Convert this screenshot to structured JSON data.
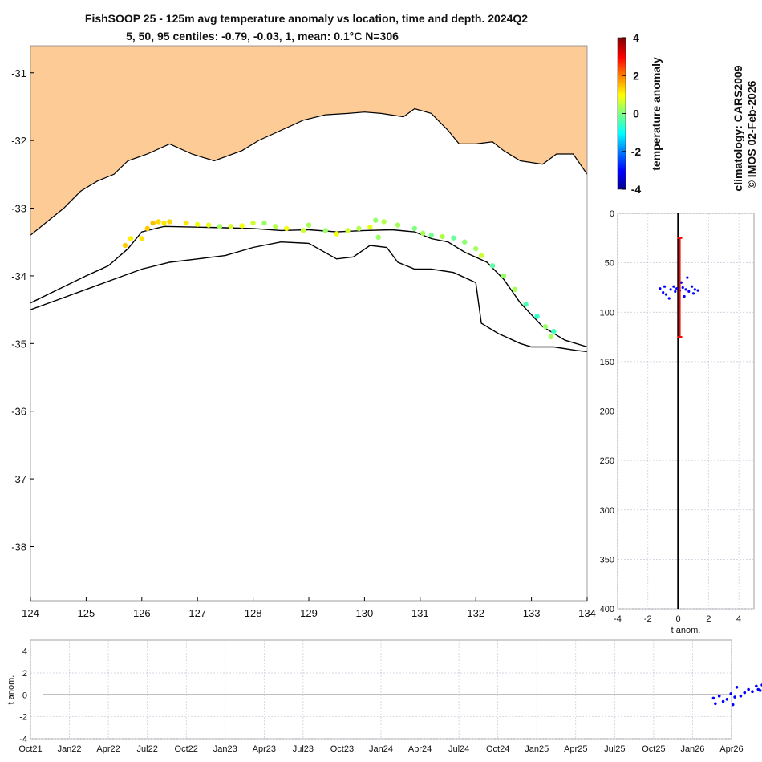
{
  "title_line1": "FishSOOP 25 - 125m avg temperature anomaly vs location, time and depth. 2024Q2",
  "title_line2": "5, 50, 95 centiles: -0.79, -0.03, 1, mean: 0.1°C N=306",
  "colorbar": {
    "label": "temperature anomaly",
    "ticks": [
      "4",
      "2",
      "0",
      "-2",
      "-4"
    ],
    "range": [
      -4,
      4
    ],
    "colors": [
      "#00008f",
      "#0000ff",
      "#007fff",
      "#00ffff",
      "#7fff7f",
      "#ffff00",
      "#ff7f00",
      "#ff0000",
      "#7f0000"
    ]
  },
  "credits": {
    "line1": "climatology: CARS2009",
    "line2": "© IMOS 02-Feb-2026"
  },
  "colors": {
    "land": "#fccb96",
    "coast": "#000000",
    "depth_points": "#0000ff",
    "centile_bar": "#ff0000",
    "grid": "#c8c8d8"
  },
  "chart_data": [
    {
      "type": "scatter",
      "name": "map",
      "xlim": [
        124,
        134
      ],
      "ylim": [
        -38.8,
        -30.6
      ],
      "xticks": [
        "124",
        "125",
        "126",
        "127",
        "128",
        "129",
        "130",
        "131",
        "132",
        "133",
        "134"
      ],
      "yticks": [
        "-31",
        "-32",
        "-33",
        "-34",
        "-35",
        "-36",
        "-37",
        "-38"
      ],
      "coastline": [
        [
          124,
          -33.4
        ],
        [
          124.3,
          -33.2
        ],
        [
          124.6,
          -33.0
        ],
        [
          124.9,
          -32.75
        ],
        [
          125.2,
          -32.6
        ],
        [
          125.5,
          -32.5
        ],
        [
          125.75,
          -32.3
        ],
        [
          126.1,
          -32.2
        ],
        [
          126.5,
          -32.05
        ],
        [
          126.9,
          -32.2
        ],
        [
          127.3,
          -32.3
        ],
        [
          127.8,
          -32.15
        ],
        [
          128.1,
          -32.0
        ],
        [
          128.5,
          -31.85
        ],
        [
          128.9,
          -31.7
        ],
        [
          129.3,
          -31.62
        ],
        [
          129.7,
          -31.6
        ],
        [
          130.0,
          -31.58
        ],
        [
          130.3,
          -31.6
        ],
        [
          130.7,
          -31.65
        ],
        [
          130.9,
          -31.53
        ],
        [
          131.2,
          -31.6
        ],
        [
          131.5,
          -31.85
        ],
        [
          131.7,
          -32.05
        ],
        [
          132.0,
          -32.05
        ],
        [
          132.3,
          -32.02
        ],
        [
          132.5,
          -32.15
        ],
        [
          132.8,
          -32.3
        ],
        [
          133.2,
          -32.35
        ],
        [
          133.45,
          -32.2
        ],
        [
          133.75,
          -32.2
        ],
        [
          134,
          -32.5
        ]
      ],
      "isobath_shelf": [
        [
          124,
          -34.4
        ],
        [
          124.5,
          -34.2
        ],
        [
          125.0,
          -34.0
        ],
        [
          125.4,
          -33.85
        ],
        [
          125.75,
          -33.6
        ],
        [
          126.0,
          -33.35
        ],
        [
          126.4,
          -33.27
        ],
        [
          127.0,
          -33.28
        ],
        [
          127.5,
          -33.29
        ],
        [
          128.0,
          -33.3
        ],
        [
          128.5,
          -33.33
        ],
        [
          129.0,
          -33.32
        ],
        [
          129.5,
          -33.35
        ],
        [
          130.0,
          -33.33
        ],
        [
          130.5,
          -33.32
        ],
        [
          130.9,
          -33.35
        ],
        [
          131.2,
          -33.45
        ],
        [
          131.5,
          -33.5
        ],
        [
          131.8,
          -33.65
        ],
        [
          132.2,
          -33.8
        ],
        [
          132.5,
          -34.05
        ],
        [
          132.8,
          -34.4
        ],
        [
          133.2,
          -34.75
        ],
        [
          133.6,
          -34.95
        ],
        [
          134,
          -35.05
        ]
      ],
      "isobath_slope": [
        [
          124,
          -34.5
        ],
        [
          124.5,
          -34.35
        ],
        [
          125.0,
          -34.2
        ],
        [
          125.5,
          -34.05
        ],
        [
          126.0,
          -33.9
        ],
        [
          126.5,
          -33.8
        ],
        [
          127.0,
          -33.75
        ],
        [
          127.5,
          -33.7
        ],
        [
          128.0,
          -33.58
        ],
        [
          128.5,
          -33.5
        ],
        [
          129.0,
          -33.52
        ],
        [
          129.5,
          -33.75
        ],
        [
          129.8,
          -33.72
        ],
        [
          130.1,
          -33.55
        ],
        [
          130.4,
          -33.58
        ],
        [
          130.6,
          -33.8
        ],
        [
          130.9,
          -33.9
        ],
        [
          131.2,
          -33.9
        ],
        [
          131.6,
          -33.95
        ],
        [
          132.0,
          -34.1
        ],
        [
          132.1,
          -34.7
        ],
        [
          132.4,
          -34.85
        ],
        [
          132.8,
          -35.0
        ],
        [
          133.0,
          -35.05
        ],
        [
          133.4,
          -35.05
        ],
        [
          133.8,
          -35.1
        ],
        [
          134,
          -35.12
        ]
      ],
      "points": [
        [
          125.7,
          -33.55,
          1.4
        ],
        [
          125.8,
          -33.45,
          1.1
        ],
        [
          126.0,
          -33.45,
          1.2
        ],
        [
          126.1,
          -33.3,
          1.4
        ],
        [
          126.2,
          -33.22,
          1.5
        ],
        [
          126.3,
          -33.2,
          1.3
        ],
        [
          126.4,
          -33.22,
          1.2
        ],
        [
          126.5,
          -33.2,
          1.3
        ],
        [
          126.8,
          -33.22,
          1.2
        ],
        [
          127.0,
          -33.24,
          0.9
        ],
        [
          127.2,
          -33.25,
          0.8
        ],
        [
          127.4,
          -33.27,
          0.3
        ],
        [
          127.6,
          -33.27,
          0.7
        ],
        [
          127.8,
          -33.26,
          0.9
        ],
        [
          128.0,
          -33.22,
          0.6
        ],
        [
          128.2,
          -33.22,
          0.2
        ],
        [
          128.4,
          -33.27,
          0.4
        ],
        [
          128.6,
          -33.3,
          0.9
        ],
        [
          128.9,
          -33.33,
          0.6
        ],
        [
          129.0,
          -33.25,
          0.3
        ],
        [
          129.3,
          -33.33,
          0.2
        ],
        [
          129.5,
          -33.38,
          0.9
        ],
        [
          129.7,
          -33.33,
          0.6
        ],
        [
          129.9,
          -33.3,
          0.4
        ],
        [
          130.1,
          -33.28,
          0.8
        ],
        [
          130.2,
          -33.18,
          0.2
        ],
        [
          130.35,
          -33.2,
          0.4
        ],
        [
          130.25,
          -33.43,
          0.2
        ],
        [
          130.6,
          -33.25,
          0.3
        ],
        [
          130.9,
          -33.3,
          0.0
        ],
        [
          131.05,
          -33.37,
          0.3
        ],
        [
          131.2,
          -33.4,
          -0.1
        ],
        [
          131.4,
          -33.42,
          0.4
        ],
        [
          131.6,
          -33.44,
          -0.2
        ],
        [
          131.8,
          -33.5,
          0.1
        ],
        [
          132.0,
          -33.6,
          0.3
        ],
        [
          132.1,
          -33.7,
          0.6
        ],
        [
          132.3,
          -33.85,
          -0.3
        ],
        [
          132.5,
          -34.0,
          0.2
        ],
        [
          132.7,
          -34.2,
          0.3
        ],
        [
          132.9,
          -34.42,
          -0.4
        ],
        [
          133.1,
          -34.6,
          -0.6
        ],
        [
          133.25,
          -34.75,
          0.2
        ],
        [
          133.4,
          -34.82,
          -0.5
        ],
        [
          133.35,
          -34.9,
          0.3
        ]
      ]
    },
    {
      "type": "scatter",
      "name": "depth_profile",
      "xlabel": "t anom.",
      "xlim": [
        -4,
        5
      ],
      "ylim": [
        0,
        400
      ],
      "xticks": [
        "-4",
        "-2",
        "0",
        "2",
        "4"
      ],
      "yticks": [
        "0",
        "50",
        "100",
        "150",
        "200",
        "250",
        "300",
        "350",
        "400"
      ],
      "centile_bar": {
        "x": 0.0,
        "y_top": 25,
        "y_bottom": 125
      },
      "points": [
        [
          -1.2,
          76
        ],
        [
          -1.0,
          80
        ],
        [
          -0.8,
          82
        ],
        [
          -0.5,
          77
        ],
        [
          -0.3,
          74
        ],
        [
          -0.1,
          76
        ],
        [
          0.1,
          78
        ],
        [
          0.3,
          75
        ],
        [
          0.5,
          77
        ],
        [
          0.7,
          79
        ],
        [
          0.9,
          74
        ],
        [
          1.1,
          77
        ],
        [
          1.3,
          78
        ],
        [
          0.6,
          65
        ],
        [
          0.2,
          70
        ],
        [
          -0.6,
          86
        ],
        [
          0.4,
          84
        ],
        [
          -0.9,
          74
        ],
        [
          1.0,
          81
        ],
        [
          -0.2,
          79
        ]
      ]
    },
    {
      "type": "scatter",
      "name": "time_series",
      "ylabel": "t anom.",
      "ylim": [
        -4,
        5
      ],
      "yticks": [
        "4",
        "2",
        "0",
        "-2",
        "-4"
      ],
      "xticks": [
        "Oct21",
        "Jan22",
        "Apr22",
        "Jul22",
        "Oct22",
        "Jan23",
        "Apr23",
        "Jul23",
        "Oct23",
        "Jan24",
        "Apr24",
        "Jul24",
        "Oct24",
        "Jan25",
        "Apr25",
        "Jul25",
        "Oct25",
        "Jan26",
        "Apr26"
      ],
      "points": [
        [
          18.05,
          -0.3
        ],
        [
          18.1,
          -0.8
        ],
        [
          18.2,
          -0.1
        ],
        [
          18.3,
          -0.6
        ],
        [
          18.4,
          -0.4
        ],
        [
          18.5,
          0.1
        ],
        [
          18.6,
          -0.2
        ],
        [
          18.65,
          0.7
        ],
        [
          18.75,
          -0.1
        ],
        [
          18.85,
          0.2
        ],
        [
          18.95,
          0.5
        ],
        [
          19.05,
          0.3
        ],
        [
          19.15,
          0.8
        ],
        [
          19.25,
          0.4
        ],
        [
          19.3,
          0.9
        ],
        [
          19.35,
          1.0
        ],
        [
          19.45,
          0.6
        ],
        [
          19.5,
          0.2
        ],
        [
          18.55,
          -0.9
        ],
        [
          19.2,
          0.5
        ]
      ]
    }
  ]
}
